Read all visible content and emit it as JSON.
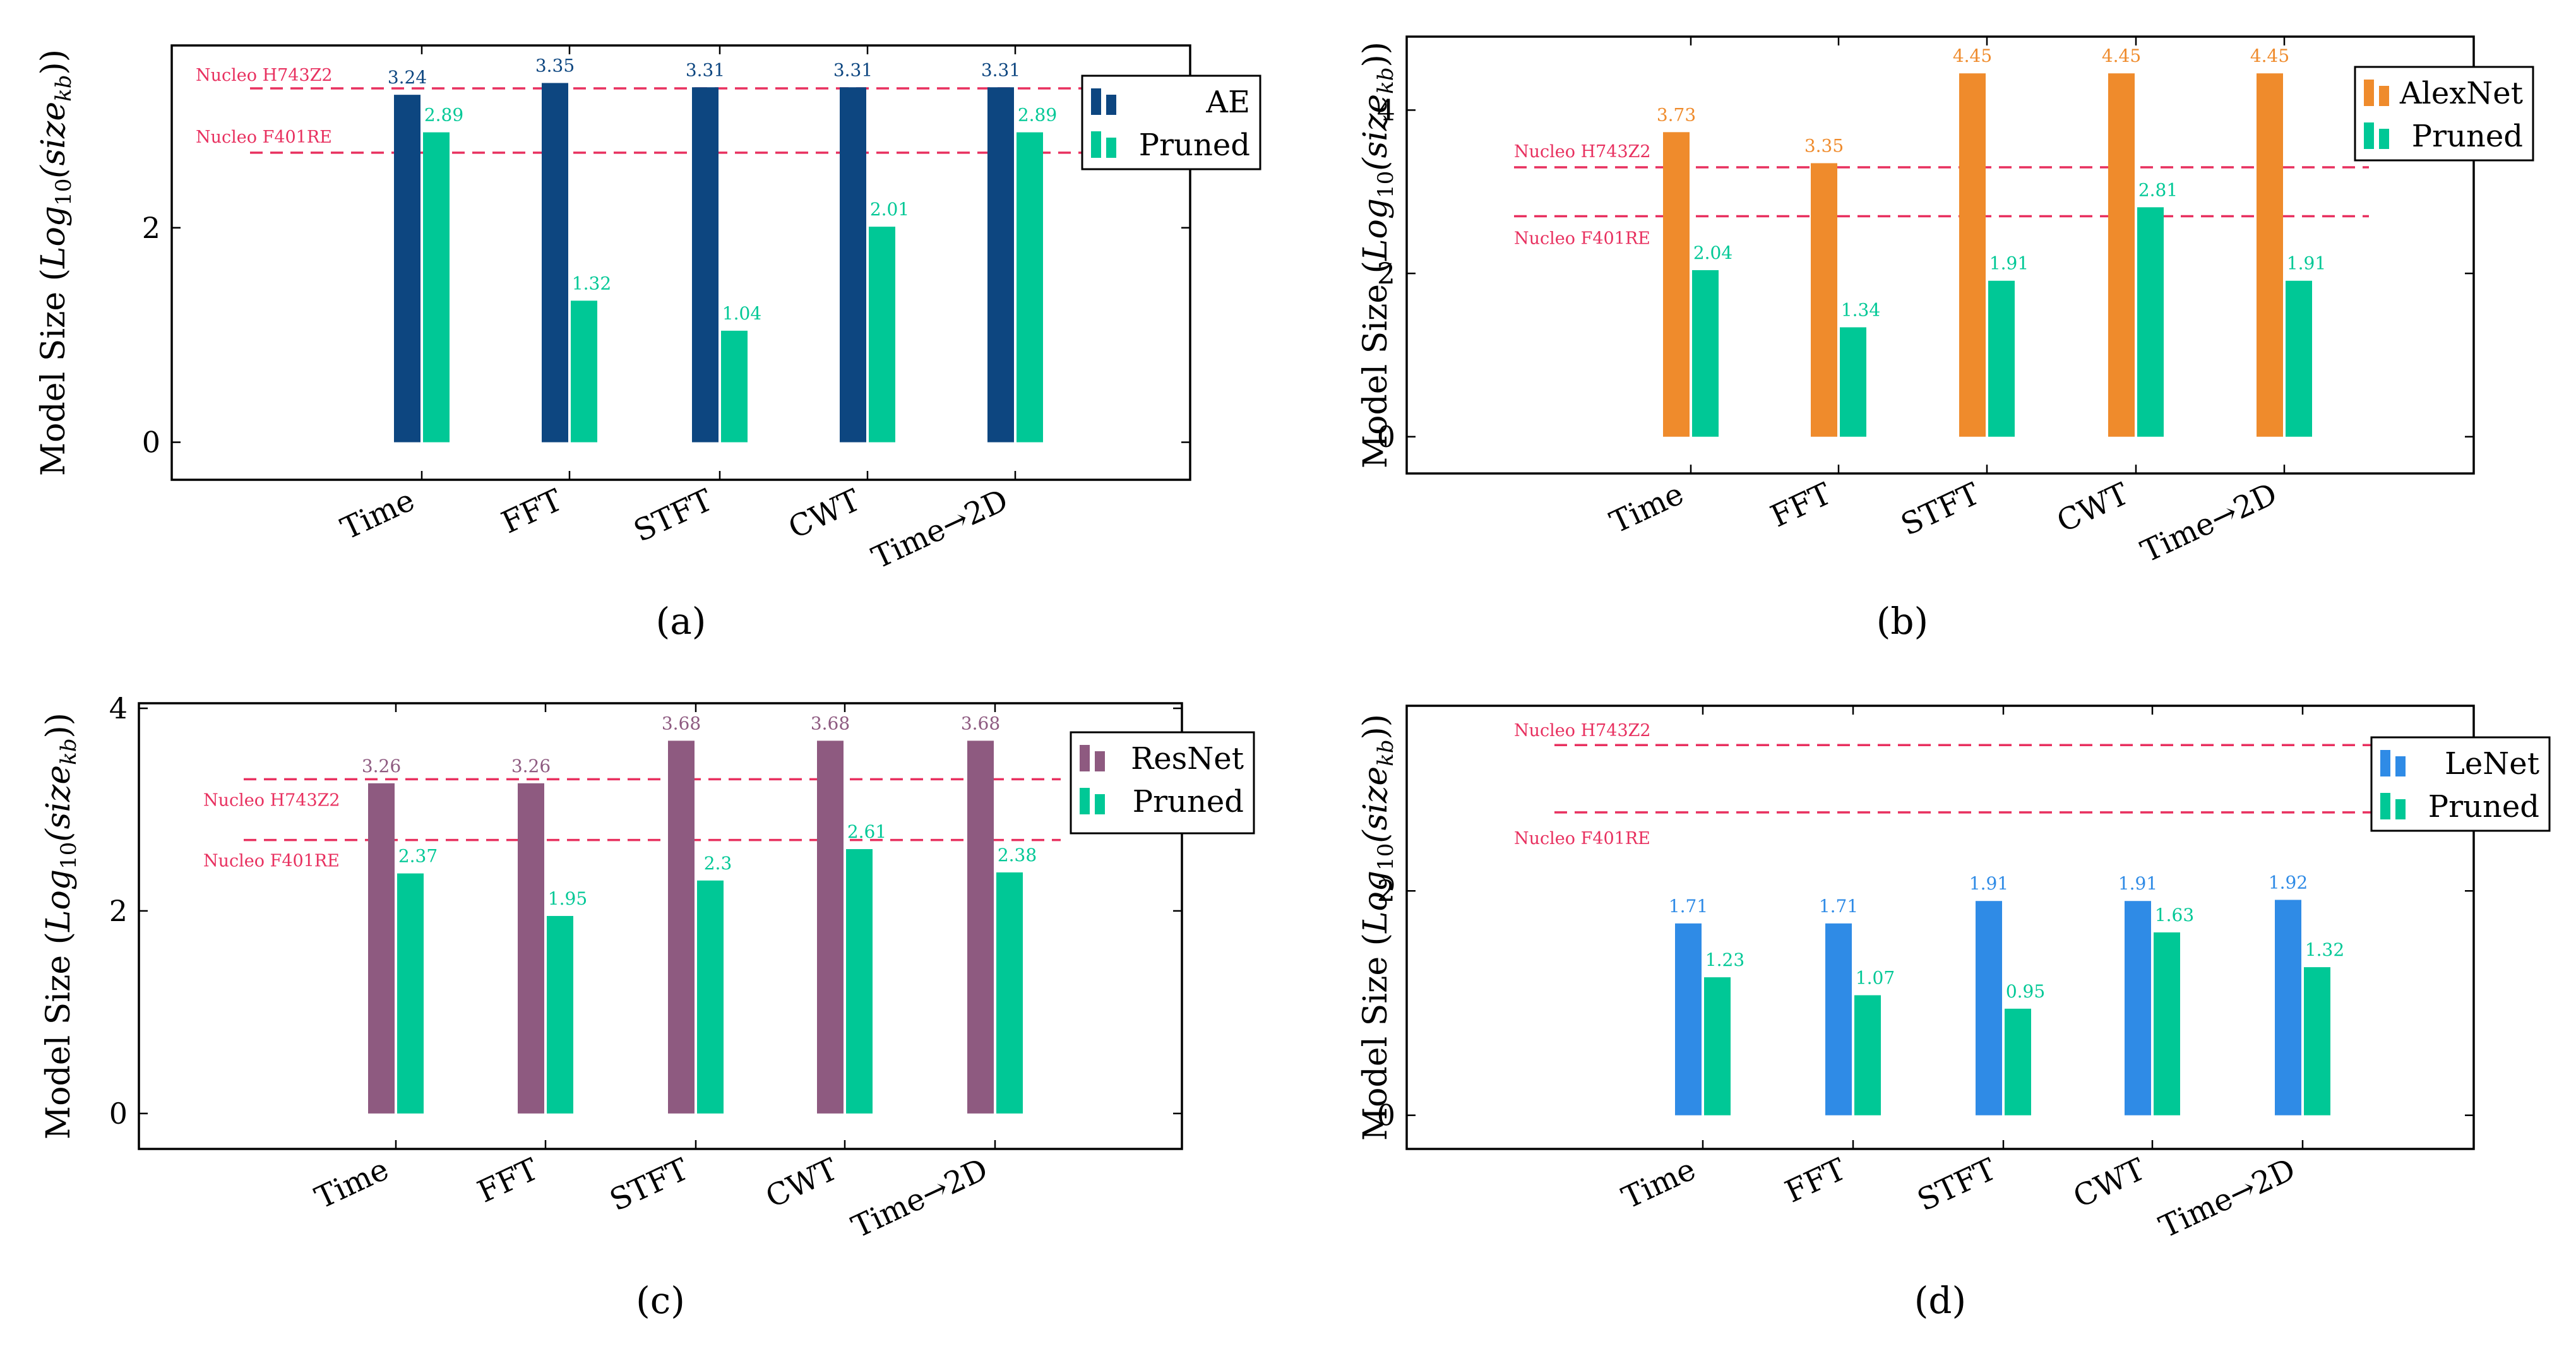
{
  "figure": {
    "categories": [
      "Time",
      "FFT",
      "STFT",
      "CWT",
      "Time→2D"
    ],
    "ylabel_prefix": "Model Size (",
    "ylabel_math_main": "Log",
    "ylabel_math_sub1": "10",
    "ylabel_math_mid": "(size",
    "ylabel_math_sub2": "kb",
    "ylabel_math_end": "))",
    "ref_line_color": "#e8305f",
    "pruned_color": "#00c896"
  },
  "chart_data": [
    {
      "id": "a",
      "caption": "(a)",
      "type": "bar",
      "categories": [
        "Time",
        "FFT",
        "STFT",
        "CWT",
        "Time→2D"
      ],
      "series": [
        {
          "name": "AE",
          "values": [
            3.24,
            3.35,
            3.31,
            3.31,
            3.31
          ],
          "labels": [
            "3.24",
            "3.35",
            "3.31",
            "3.31",
            "3.31"
          ],
          "color": "#0d4680"
        },
        {
          "name": "Pruned",
          "values": [
            2.89,
            1.32,
            1.04,
            2.01,
            2.89
          ],
          "labels": [
            "2.89",
            "1.32",
            "1.04",
            "2.01",
            "2.89"
          ],
          "color": "#00c896"
        }
      ],
      "ylabel": "Model Size (Log10(size_kb))",
      "ylim": [
        -0.35,
        3.7
      ],
      "yticks": [
        0,
        2
      ],
      "ytick_labels": [
        "0",
        "2"
      ],
      "reference_lines": [
        {
          "label": "Nucleo H743Z2",
          "value": 3.3
        },
        {
          "label": "Nucleo F401RE",
          "value": 2.7
        }
      ],
      "legend": "top-right"
    },
    {
      "id": "b",
      "caption": "(b)",
      "type": "bar",
      "categories": [
        "Time",
        "FFT",
        "STFT",
        "CWT",
        "Time→2D"
      ],
      "series": [
        {
          "name": "AlexNet",
          "values": [
            3.73,
            3.35,
            4.45,
            4.45,
            4.45
          ],
          "labels": [
            "3.73",
            "3.35",
            "4.45",
            "4.45",
            "4.45"
          ],
          "color": "#ef8b2c"
        },
        {
          "name": "Pruned",
          "values": [
            2.04,
            1.34,
            1.91,
            2.81,
            1.91
          ],
          "labels": [
            "2.04",
            "1.34",
            "1.91",
            "2.81",
            "1.91"
          ],
          "color": "#00c896"
        }
      ],
      "ylabel": "Model Size (Log10(size_kb))",
      "ylim": [
        -0.45,
        4.9
      ],
      "yticks": [
        0,
        2,
        4
      ],
      "ytick_labels": [
        "0",
        "2",
        "4"
      ],
      "reference_lines": [
        {
          "label": "Nucleo H743Z2",
          "value": 3.3
        },
        {
          "label": "Nucleo F401RE",
          "value": 2.7
        }
      ],
      "legend": "top-right"
    },
    {
      "id": "c",
      "caption": "(c)",
      "type": "bar",
      "categories": [
        "Time",
        "FFT",
        "STFT",
        "CWT",
        "Time→2D"
      ],
      "series": [
        {
          "name": "ResNet",
          "values": [
            3.26,
            3.26,
            3.68,
            3.68,
            3.68
          ],
          "labels": [
            "3.26",
            "3.26",
            "3.68",
            "3.68",
            "3.68"
          ],
          "color": "#8e5a80"
        },
        {
          "name": "Pruned",
          "values": [
            2.37,
            1.95,
            2.3,
            2.61,
            2.38
          ],
          "labels": [
            "2.37",
            "1.95",
            "2.3",
            "2.61",
            "2.38"
          ],
          "color": "#00c896"
        }
      ],
      "ylabel": "Model Size (Log10(size_kb))",
      "ylim": [
        -0.35,
        4.05
      ],
      "yticks": [
        0,
        2,
        4
      ],
      "ytick_labels": [
        "0",
        "2",
        "4"
      ],
      "reference_lines": [
        {
          "label": "Nucleo H743Z2",
          "value": 3.3
        },
        {
          "label": "Nucleo F401RE",
          "value": 2.7
        }
      ],
      "legend": "top-right"
    },
    {
      "id": "d",
      "caption": "(d)",
      "type": "bar",
      "categories": [
        "Time",
        "FFT",
        "STFT",
        "CWT",
        "Time→2D"
      ],
      "series": [
        {
          "name": "LeNet",
          "values": [
            1.71,
            1.71,
            1.91,
            1.91,
            1.92
          ],
          "labels": [
            "1.71",
            "1.71",
            "1.91",
            "1.91",
            "1.92"
          ],
          "color": "#2f8be6"
        },
        {
          "name": "Pruned",
          "values": [
            1.23,
            1.07,
            0.95,
            1.63,
            1.32
          ],
          "labels": [
            "1.23",
            "1.07",
            "0.95",
            "1.63",
            "1.32"
          ],
          "color": "#00c896"
        }
      ],
      "ylabel": "Model Size (Log10(size_kb))",
      "ylim": [
        -0.3,
        3.65
      ],
      "yticks": [
        0,
        2
      ],
      "ytick_labels": [
        "0",
        "2"
      ],
      "reference_lines": [
        {
          "label": "Nucleo H743Z2",
          "value": 3.3
        },
        {
          "label": "Nucleo F401RE",
          "value": 2.7
        }
      ],
      "legend": "top-right"
    }
  ]
}
